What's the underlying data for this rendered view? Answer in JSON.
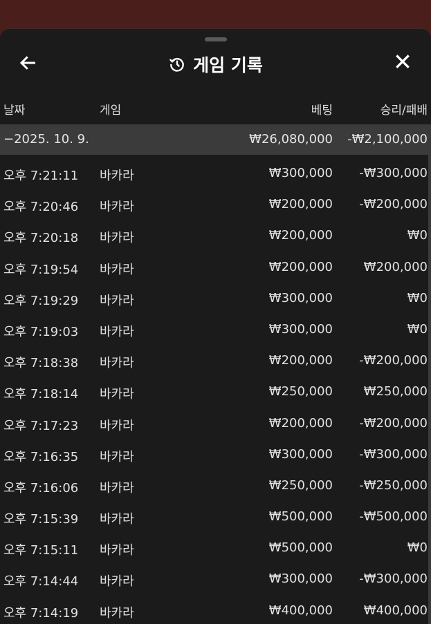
{
  "header": {
    "title": "게임 기록",
    "back_icon": "arrow-left-icon",
    "history_icon": "history-icon",
    "close_icon": "close-icon"
  },
  "columns": {
    "date": "날짜",
    "game": "게임",
    "bet": "베팅",
    "result": "승리/패배"
  },
  "date_group": {
    "label": "−2025. 10. 9.",
    "bet_total": "₩26,080,000",
    "result_total": "-₩2,100,000"
  },
  "rows": [
    {
      "time": "오후 7:21:11",
      "game": "바카라",
      "bet": "₩300,000",
      "result": "-₩300,000"
    },
    {
      "time": "오후 7:20:46",
      "game": "바카라",
      "bet": "₩200,000",
      "result": "-₩200,000"
    },
    {
      "time": "오후 7:20:18",
      "game": "바카라",
      "bet": "₩200,000",
      "result": "₩0"
    },
    {
      "time": "오후 7:19:54",
      "game": "바카라",
      "bet": "₩200,000",
      "result": "₩200,000"
    },
    {
      "time": "오후 7:19:29",
      "game": "바카라",
      "bet": "₩300,000",
      "result": "₩0"
    },
    {
      "time": "오후 7:19:03",
      "game": "바카라",
      "bet": "₩300,000",
      "result": "₩0"
    },
    {
      "time": "오후 7:18:38",
      "game": "바카라",
      "bet": "₩200,000",
      "result": "-₩200,000"
    },
    {
      "time": "오후 7:18:14",
      "game": "바카라",
      "bet": "₩250,000",
      "result": "₩250,000"
    },
    {
      "time": "오후 7:17:23",
      "game": "바카라",
      "bet": "₩200,000",
      "result": "-₩200,000"
    },
    {
      "time": "오후 7:16:35",
      "game": "바카라",
      "bet": "₩300,000",
      "result": "-₩300,000"
    },
    {
      "time": "오후 7:16:06",
      "game": "바카라",
      "bet": "₩250,000",
      "result": "-₩250,000"
    },
    {
      "time": "오후 7:15:39",
      "game": "바카라",
      "bet": "₩500,000",
      "result": "-₩500,000"
    },
    {
      "time": "오후 7:15:11",
      "game": "바카라",
      "bet": "₩500,000",
      "result": "₩0"
    },
    {
      "time": "오후 7:14:44",
      "game": "바카라",
      "bet": "₩300,000",
      "result": "-₩300,000"
    },
    {
      "time": "오후 7:14:19",
      "game": "바카라",
      "bet": "₩400,000",
      "result": "₩400,000"
    }
  ]
}
